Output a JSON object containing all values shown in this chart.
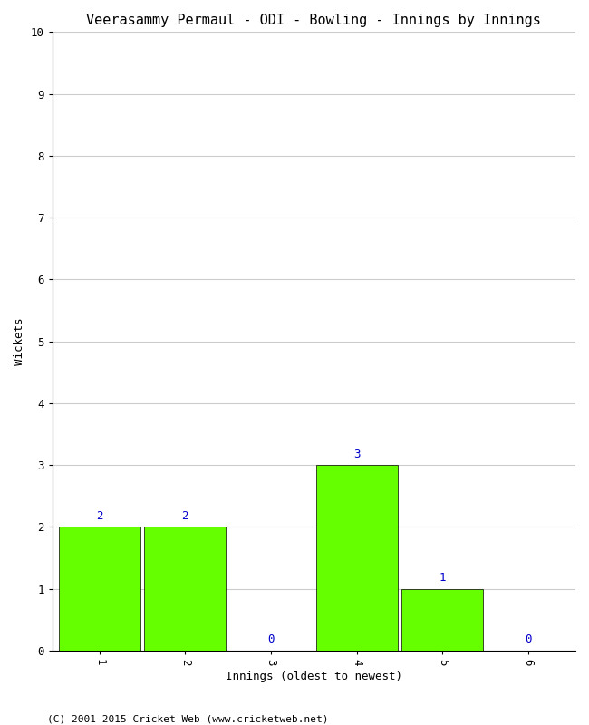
{
  "title": "Veerasammy Permaul - ODI - Bowling - Innings by Innings",
  "xlabel": "Innings (oldest to newest)",
  "ylabel": "Wickets",
  "categories": [
    1,
    2,
    3,
    4,
    5,
    6
  ],
  "values": [
    2,
    2,
    0,
    3,
    1,
    0
  ],
  "bar_color": "#66ff00",
  "bar_edge_color": "#000000",
  "label_color": "#0000cc",
  "ylim": [
    0,
    10
  ],
  "yticks": [
    0,
    1,
    2,
    3,
    4,
    5,
    6,
    7,
    8,
    9,
    10
  ],
  "background_color": "#ffffff",
  "grid_color": "#cccccc",
  "title_fontsize": 11,
  "axis_label_fontsize": 9,
  "tick_fontsize": 9,
  "bar_label_fontsize": 9,
  "footer": "(C) 2001-2015 Cricket Web (www.cricketweb.net)",
  "footer_fontsize": 8
}
